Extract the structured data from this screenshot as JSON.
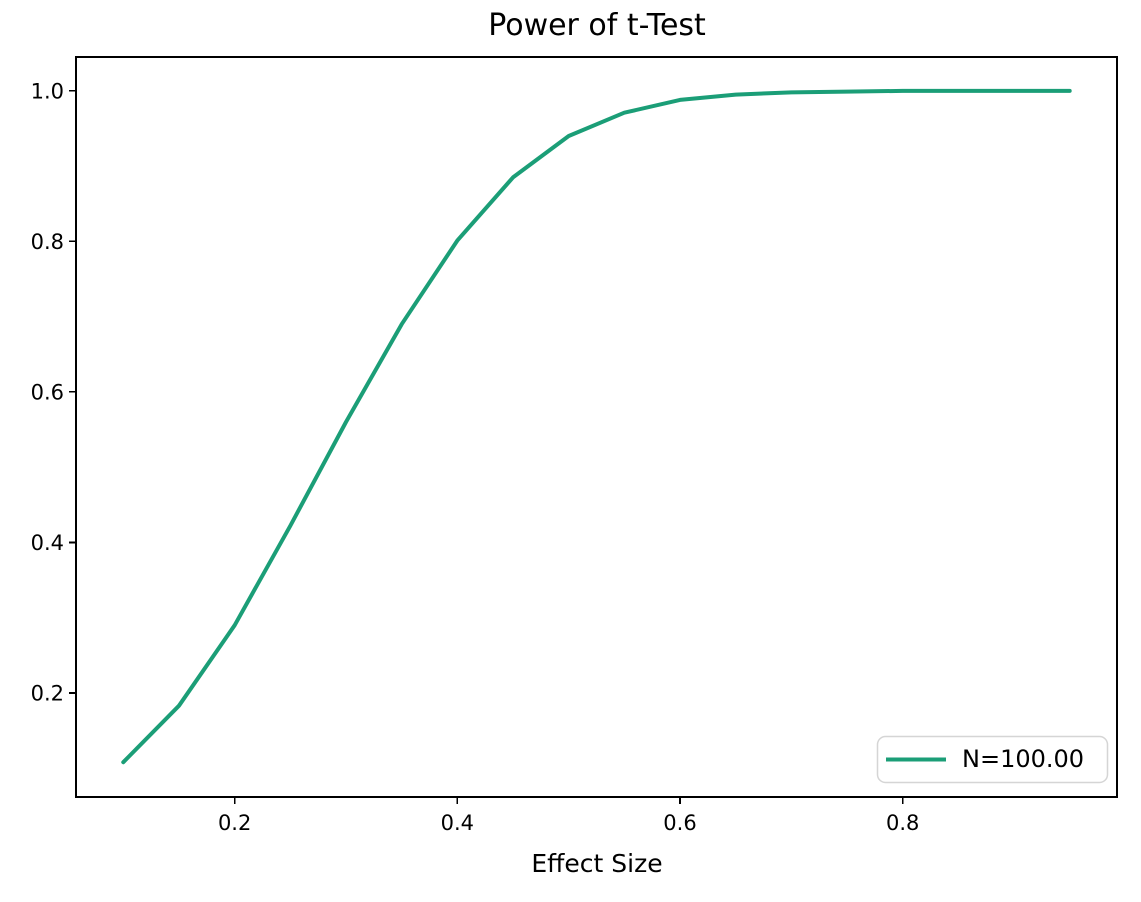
{
  "chart_data": {
    "type": "line",
    "title": "Power of t-Test",
    "xlabel": "Effect Size",
    "ylabel": "",
    "x": [
      0.1,
      0.15,
      0.2,
      0.25,
      0.3,
      0.35,
      0.4,
      0.45,
      0.5,
      0.55,
      0.6,
      0.65,
      0.7,
      0.75,
      0.8,
      0.85,
      0.9,
      0.95
    ],
    "series": [
      {
        "name": "N=100.00",
        "color": "#1b9e77",
        "values": [
          0.108,
          0.183,
          0.29,
          0.422,
          0.56,
          0.69,
          0.801,
          0.885,
          0.94,
          0.971,
          0.988,
          0.995,
          0.998,
          0.999,
          1.0,
          1.0,
          1.0,
          1.0
        ]
      }
    ],
    "xlim": [
      0.0575,
      0.9925
    ],
    "ylim": [
      0.0617,
      1.045
    ],
    "xticks": {
      "values": [
        0.2,
        0.4,
        0.6,
        0.8
      ],
      "labels": [
        "0.2",
        "0.4",
        "0.6",
        "0.8"
      ]
    },
    "yticks": {
      "values": [
        0.2,
        0.4,
        0.6,
        0.8,
        1.0
      ],
      "labels": [
        "0.2",
        "0.4",
        "0.6",
        "0.8",
        "1.0"
      ]
    },
    "grid": false,
    "legend": {
      "position": "lower right"
    }
  },
  "colors": {
    "line": "#1b9e77",
    "text": "#000000",
    "legend_border": "#d5d5d5",
    "background": "#ffffff"
  }
}
